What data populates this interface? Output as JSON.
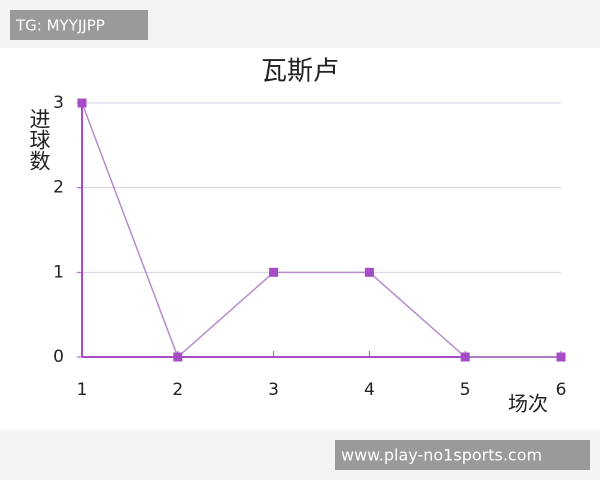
{
  "overlay": {
    "top_label": "TG: MYYJJPP",
    "bottom_label": "www.play-no1sports.com"
  },
  "chart_data": {
    "type": "line",
    "title": "瓦斯卢",
    "y_label": "进球数",
    "x_label": "场次",
    "x": [
      1,
      2,
      3,
      4,
      5,
      6
    ],
    "series": [
      {
        "name": "瓦斯卢",
        "color": "#a64cc6",
        "values": [
          3,
          0,
          1,
          1,
          0,
          0
        ]
      }
    ],
    "xlim": [
      1,
      6
    ],
    "xticks": [
      1,
      2,
      3,
      4,
      5,
      6
    ],
    "ylim": [
      0,
      3
    ],
    "yticks": [
      0,
      1,
      2,
      3
    ],
    "grid": true
  }
}
